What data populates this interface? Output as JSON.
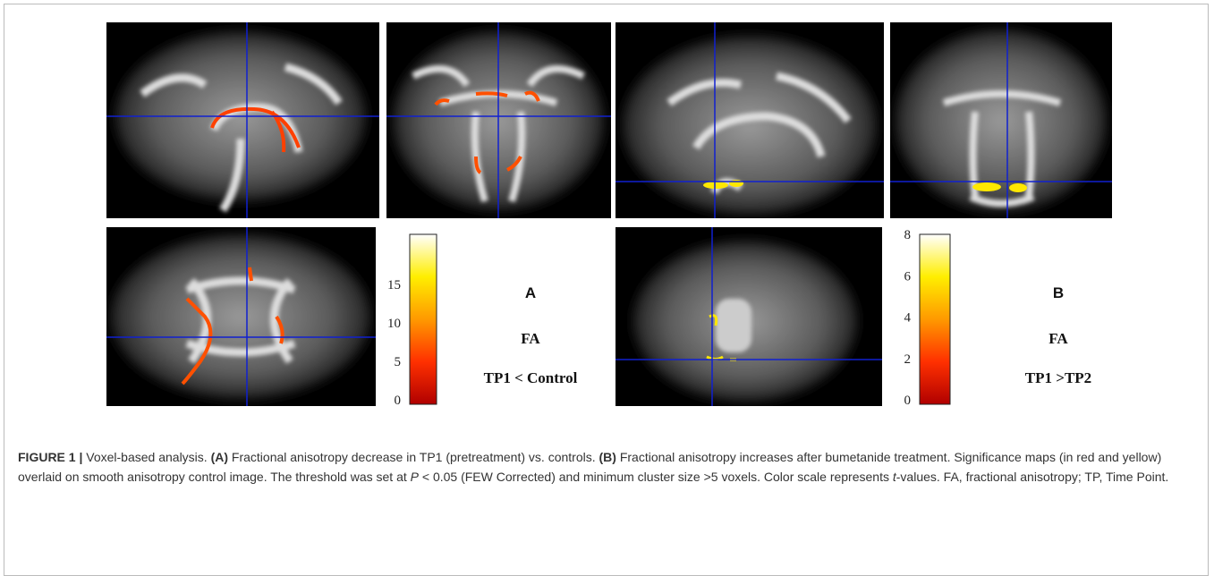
{
  "figure": {
    "panels": [
      {
        "label": "A",
        "measure": "FA",
        "contrast": "TP1 < Control",
        "colorbar_ticks": [
          0,
          5,
          10,
          15
        ]
      },
      {
        "label": "B",
        "measure": "FA",
        "contrast": "TP1 >TP2",
        "colorbar_ticks": [
          0,
          2,
          4,
          6,
          8
        ]
      }
    ],
    "caption": [
      {
        "text": "FIGURE 1 |",
        "style": "bold"
      },
      {
        "text": " Voxel-based analysis. ",
        "style": "normal"
      },
      {
        "text": "(A)",
        "style": "bold"
      },
      {
        "text": " Fractional anisotropy decrease in TP1 (pretreatment) vs. controls. ",
        "style": "normal"
      },
      {
        "text": "(B)",
        "style": "bold"
      },
      {
        "text": " Fractional anisotropy increases after bumetanide treatment. Significance maps (in red and yellow) overlaid on smooth anisotropy control image. The threshold was set at ",
        "style": "normal"
      },
      {
        "text": "P",
        "style": "italic"
      },
      {
        "text": " < 0.05 (FEW Corrected) and minimum cluster size >5 voxels. Color scale represents ",
        "style": "normal"
      },
      {
        "text": "t",
        "style": "italic"
      },
      {
        "text": "-values. FA, fractional anisotropy; TP, Time Point.",
        "style": "normal"
      }
    ]
  }
}
